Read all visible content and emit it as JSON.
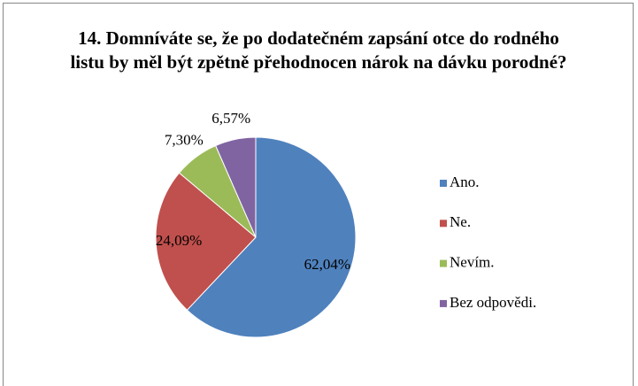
{
  "chart_data": {
    "type": "pie",
    "title": "14. Domníváte se, že po dodatečném zapsání otce do rodného listu by měl být zpětně přehodnocen nárok na dávku porodné?",
    "categories": [
      "Ano.",
      "Ne.",
      "Nevím.",
      "Bez odpovědi."
    ],
    "values": [
      62.04,
      24.09,
      7.3,
      6.57
    ],
    "value_labels": [
      "62,04%",
      "24,09%",
      "7,30%",
      "6,57%"
    ],
    "colors": [
      "#4f81bd",
      "#c0504d",
      "#9bbb59",
      "#8064a2"
    ],
    "legend": "right"
  }
}
